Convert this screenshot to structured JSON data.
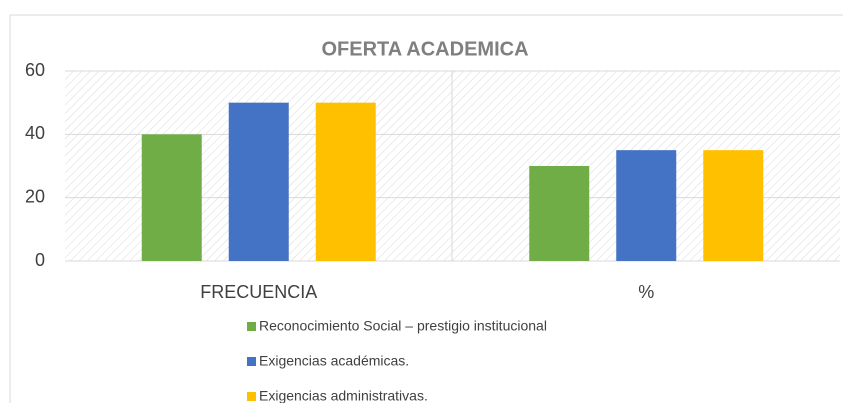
{
  "chart_data": {
    "type": "bar",
    "title": "OFERTA  ACADEMICA",
    "categories": [
      "FRECUENCIA",
      "%"
    ],
    "series": [
      {
        "name": "Reconocimiento Social – prestigio institucional",
        "color": "#70ad47",
        "values": [
          40,
          30
        ]
      },
      {
        "name": "Exigencias académicas.",
        "color": "#4472c4",
        "values": [
          50,
          35
        ]
      },
      {
        "name": "Exigencias administrativas.",
        "color": "#ffc000",
        "values": [
          50,
          35
        ]
      }
    ],
    "ylim": [
      0,
      60
    ],
    "yticks": [
      0,
      20,
      40,
      60
    ],
    "grid": true,
    "legend": "bottom"
  }
}
